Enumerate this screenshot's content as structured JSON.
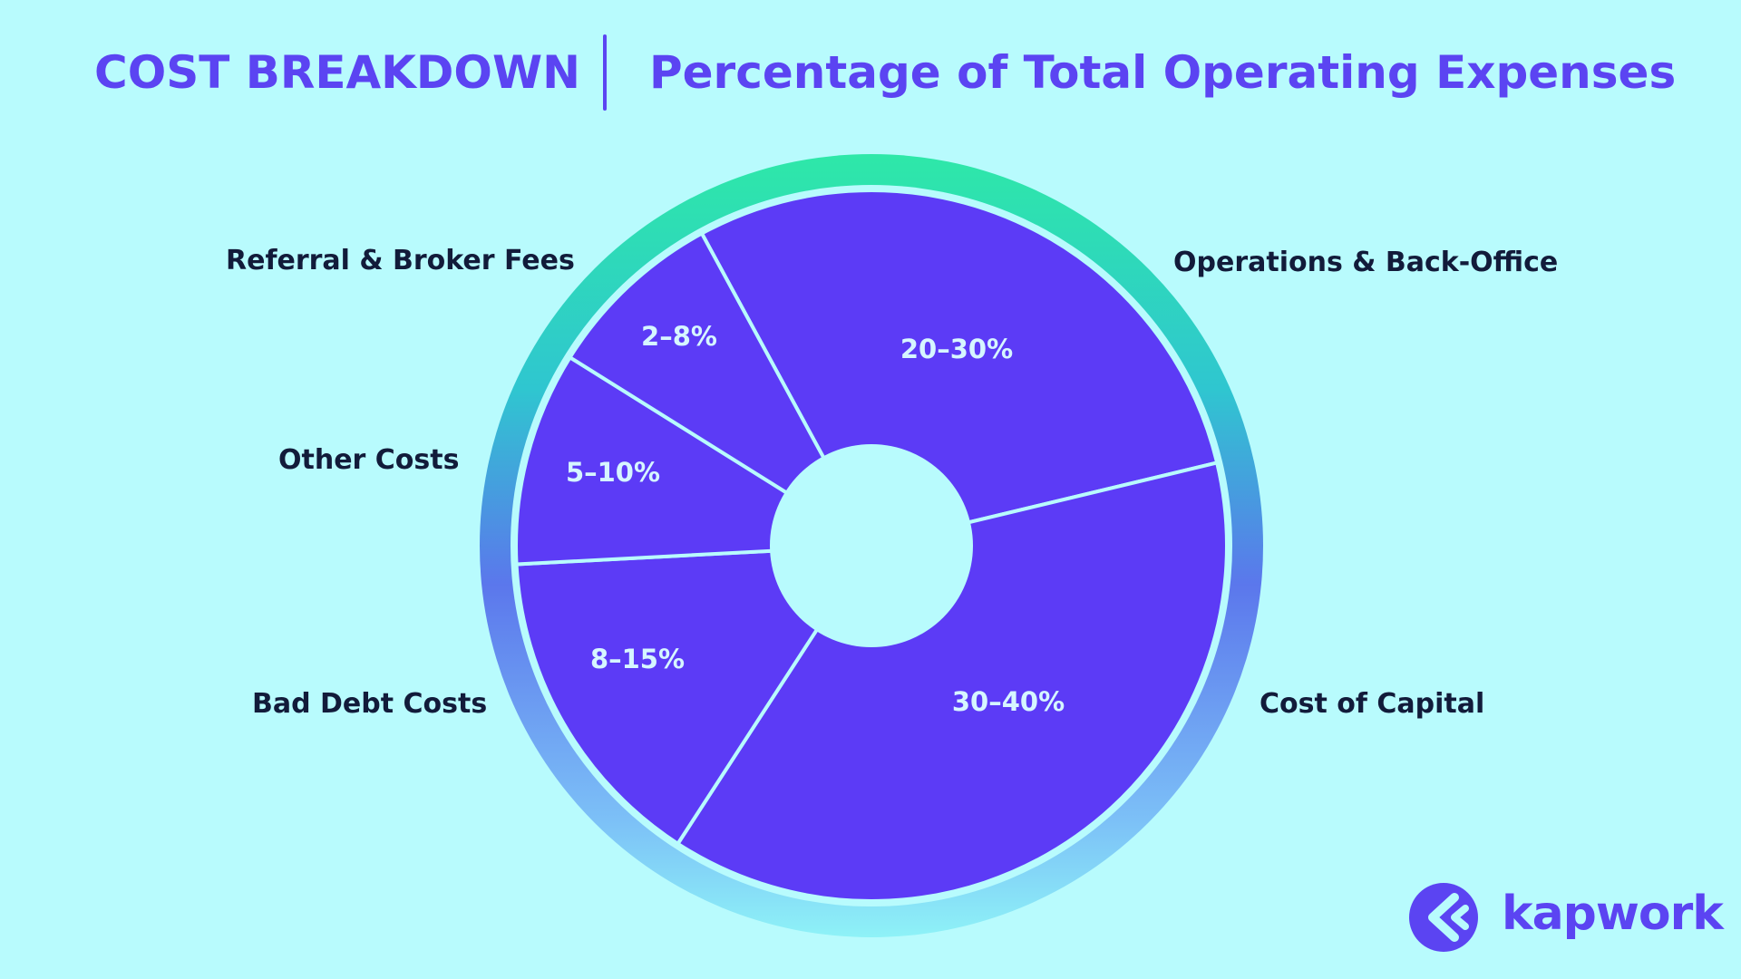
{
  "header": {
    "title": "COST BREAKDOWN",
    "subtitle": "Percentage of Total Operating Expenses"
  },
  "chart_data": {
    "type": "pie",
    "title": "COST BREAKDOWN",
    "subtitle": "Percentage of Total Operating Expenses",
    "donut": true,
    "slices": [
      {
        "label": "Operations & Back-Office",
        "value_label": "20–30%",
        "range": [
          20,
          30
        ]
      },
      {
        "label": "Cost of Capital",
        "value_label": "30–40%",
        "range": [
          30,
          40
        ]
      },
      {
        "label": "Bad Debt Costs",
        "value_label": "8–15%",
        "range": [
          8,
          15
        ]
      },
      {
        "label": "Other Costs",
        "value_label": "5–10%",
        "range": [
          5,
          10
        ]
      },
      {
        "label": "Referral & Broker Fees",
        "value_label": "2–8%",
        "range": [
          2,
          8
        ]
      }
    ]
  },
  "brand": {
    "name": "kapwork",
    "logo_icon": "kapwork-logo-icon"
  },
  "colors": {
    "background": "#b8fbfd",
    "slice_fill": "#5c3bf6",
    "accent": "#5b44f2",
    "label_text": "#121b3a",
    "ring_gradient": [
      "#2ee8a8",
      "#5b8ef0",
      "#8ef2f7"
    ]
  }
}
